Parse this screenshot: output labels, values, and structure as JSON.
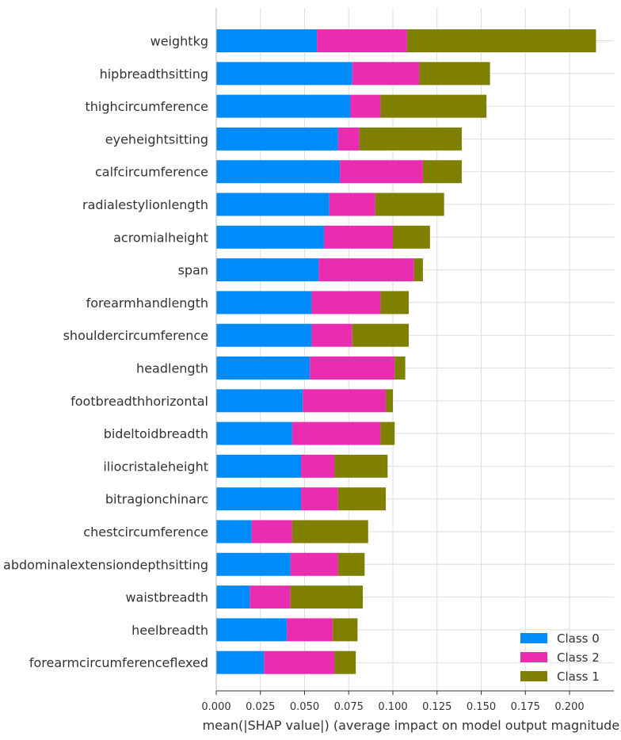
{
  "chart_data": {
    "type": "bar",
    "orientation": "horizontal",
    "stacked": true,
    "categories": [
      "weightkg",
      "hipbreadthsitting",
      "thighcircumference",
      "eyeheightsitting",
      "calfcircumference",
      "radialestylionlength",
      "acromialheight",
      "span",
      "forearmhandlength",
      "shouldercircumference",
      "headlength",
      "footbreadthhorizontal",
      "bideltoidbreadth",
      "iliocristaleheight",
      "bitragionchinarc",
      "chestcircumference",
      "abdominalextensiondepthsitting",
      "waistbreadth",
      "heelbreadth",
      "forearmcircumferenceflexed"
    ],
    "series": [
      {
        "name": "Class 0",
        "color": "#008bfb",
        "values": [
          0.057,
          0.077,
          0.076,
          0.069,
          0.07,
          0.064,
          0.061,
          0.058,
          0.054,
          0.054,
          0.053,
          0.049,
          0.043,
          0.048,
          0.048,
          0.02,
          0.042,
          0.019,
          0.04,
          0.027
        ]
      },
      {
        "name": "Class 2",
        "color": "#e92cb0",
        "values": [
          0.051,
          0.038,
          0.017,
          0.012,
          0.047,
          0.026,
          0.039,
          0.054,
          0.039,
          0.023,
          0.048,
          0.047,
          0.05,
          0.019,
          0.021,
          0.023,
          0.027,
          0.023,
          0.026,
          0.04
        ]
      },
      {
        "name": "Class 1",
        "color": "#808000",
        "values": [
          0.107,
          0.04,
          0.06,
          0.058,
          0.022,
          0.039,
          0.021,
          0.005,
          0.016,
          0.032,
          0.006,
          0.004,
          0.008,
          0.03,
          0.027,
          0.043,
          0.015,
          0.041,
          0.014,
          0.012
        ]
      }
    ],
    "xlabel": "mean(|SHAP value|) (average impact on model output magnitude)",
    "ylabel": "",
    "title": "",
    "xlim": [
      0.0,
      0.225
    ],
    "xticks": [
      "0.000",
      "0.025",
      "0.050",
      "0.075",
      "0.100",
      "0.125",
      "0.150",
      "0.175",
      "0.200"
    ],
    "grid": true,
    "legend": {
      "position": "bottom-right",
      "entries": [
        "Class 0",
        "Class 2",
        "Class 1"
      ]
    }
  }
}
